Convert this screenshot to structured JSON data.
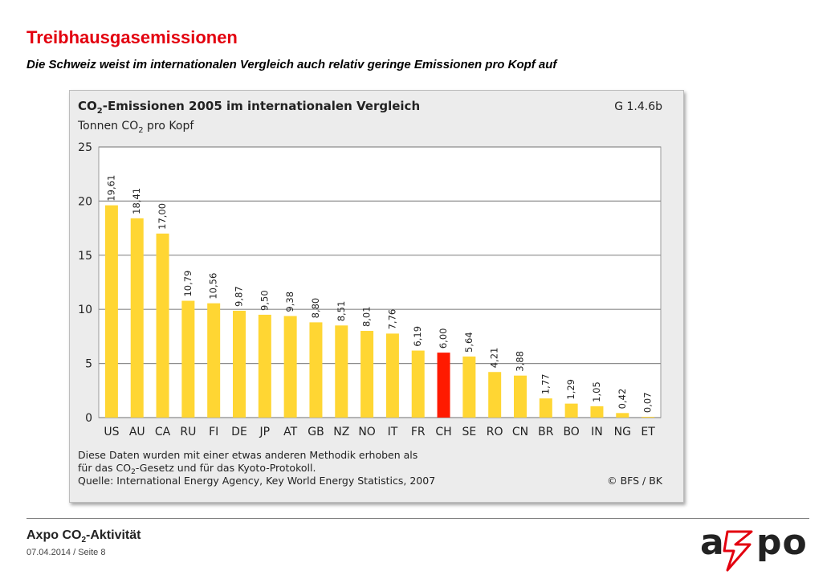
{
  "page": {
    "title": "Treibhausgasemissionen",
    "subtitle": "Die Schweiz weist im internationalen Vergleich auch relativ geringe Emissionen pro Kopf auf"
  },
  "footer": {
    "title_prefix": "Axpo CO",
    "title_sub": "2",
    "title_suffix": "-Aktivität",
    "date_page": "07.04.2014 / Seite 8"
  },
  "logo": {
    "text": "axpo",
    "color": "#222222",
    "accent": "#e3000f"
  },
  "chart_data": {
    "type": "bar",
    "title_prefix": "CO",
    "title_sub": "2",
    "title_suffix": "-Emissionen 2005 im internationalen Vergleich",
    "subtitle_prefix": "Tonnen CO",
    "subtitle_sub": "2",
    "subtitle_suffix": " pro Kopf",
    "ref_code": "G 1.4.6b",
    "categories": [
      "US",
      "AU",
      "CA",
      "RU",
      "FI",
      "DE",
      "JP",
      "AT",
      "GB",
      "NZ",
      "NO",
      "IT",
      "FR",
      "CH",
      "SE",
      "RO",
      "CN",
      "BR",
      "BO",
      "IN",
      "NG",
      "ET"
    ],
    "values": [
      19.61,
      18.41,
      17.0,
      10.79,
      10.56,
      9.87,
      9.5,
      9.38,
      8.8,
      8.51,
      8.01,
      7.76,
      6.19,
      6.0,
      5.64,
      4.21,
      3.88,
      1.77,
      1.29,
      1.05,
      0.42,
      0.07
    ],
    "value_labels": [
      "19,61",
      "18,41",
      "17,00",
      "10,79",
      "10,56",
      "9,87",
      "9,50",
      "9,38",
      "8,80",
      "8,51",
      "8,01",
      "7,76",
      "6,19",
      "6,00",
      "5,64",
      "4,21",
      "3,88",
      "1,77",
      "1,29",
      "1,05",
      "0,42",
      "0,07"
    ],
    "highlight": "CH",
    "bar_color": "#ffd633",
    "highlight_color": "#ff1a00",
    "ylim": [
      0,
      25
    ],
    "yticks": [
      0,
      5,
      10,
      15,
      20,
      25
    ],
    "grid": true,
    "notes": [
      {
        "prefix": "Diese Daten wurden mit einer etwas anderen Methodik erhoben als",
        "sub": "",
        "suffix": ""
      },
      {
        "prefix": "für das CO",
        "sub": "2",
        "suffix": "-Gesetz und für das Kyoto-Protokoll."
      },
      {
        "prefix": "Quelle: International Energy Agency, Key World Energy Statistics, 2007",
        "sub": "",
        "suffix": ""
      }
    ],
    "credit": "© BFS / BK"
  }
}
